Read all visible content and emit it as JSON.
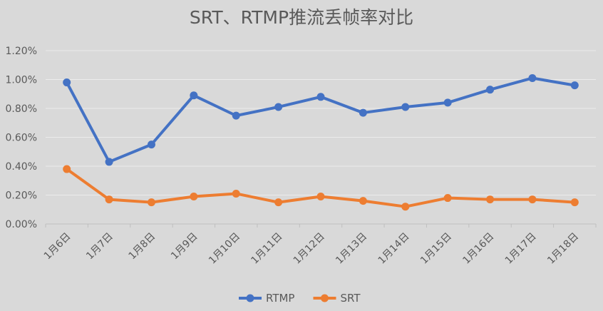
{
  "chart_data": {
    "type": "line",
    "title": "SRT、RTMP推流丢帧率对比",
    "xlabel": "",
    "ylabel": "",
    "categories": [
      "1月6日",
      "1月7日",
      "1月8日",
      "1月9日",
      "1月10日",
      "1月11日",
      "1月12日",
      "1月13日",
      "1月14日",
      "1月15日",
      "1月16日",
      "1月17日",
      "1月18日"
    ],
    "ylim": [
      0,
      1.2
    ],
    "yticks": [
      "0.00%",
      "0.20%",
      "0.40%",
      "0.60%",
      "0.80%",
      "1.00%",
      "1.20%"
    ],
    "grid": true,
    "legend_position": "bottom",
    "series": [
      {
        "name": "RTMP",
        "color": "#4472c4",
        "values": [
          0.98,
          0.43,
          0.55,
          0.89,
          0.75,
          0.81,
          0.88,
          0.77,
          0.81,
          0.84,
          0.93,
          1.01,
          0.96
        ]
      },
      {
        "name": "SRT",
        "color": "#ed7d31",
        "values": [
          0.38,
          0.17,
          0.15,
          0.19,
          0.21,
          0.15,
          0.19,
          0.16,
          0.12,
          0.18,
          0.17,
          0.17,
          0.15
        ]
      }
    ]
  }
}
